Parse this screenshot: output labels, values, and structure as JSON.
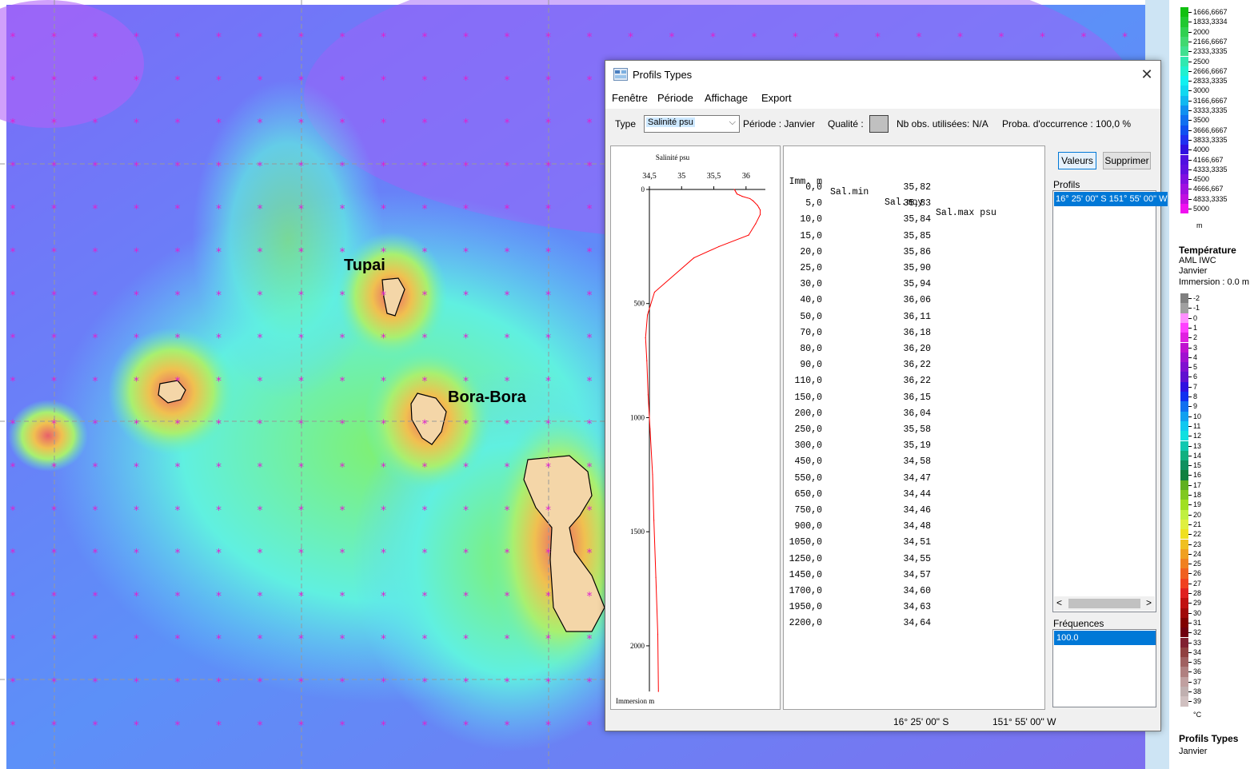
{
  "map": {
    "places": [
      "Tupai",
      "Bora-Bora"
    ]
  },
  "legend": {
    "depth_labels": [
      "1666,6667",
      "1833,3334",
      "2000",
      "2166,6667",
      "2333,3335",
      "2500",
      "2666,6667",
      "2833,3335",
      "3000",
      "3166,6667",
      "3333,3335",
      "3500",
      "3666,6667",
      "3833,3335",
      "4000",
      "4166,667",
      "4333,3335",
      "4500",
      "4666,667",
      "4833,3335",
      "5000"
    ],
    "depth_unit": "m",
    "temp_title": "Température",
    "temp_source": "AML IWC",
    "temp_month": "Janvier",
    "temp_immersion": "Immersion : 0.0 m",
    "temp_labels": [
      "-2",
      "-1",
      "0",
      "1",
      "2",
      "3",
      "4",
      "5",
      "6",
      "7",
      "8",
      "9",
      "10",
      "11",
      "12",
      "13",
      "14",
      "15",
      "16",
      "17",
      "18",
      "19",
      "20",
      "21",
      "22",
      "23",
      "24",
      "25",
      "26",
      "27",
      "28",
      "29",
      "30",
      "31",
      "32",
      "33",
      "34",
      "35",
      "36",
      "37",
      "38",
      "39"
    ],
    "temp_unit": "°C",
    "footer_title": "Profils Types",
    "footer_month": "Janvier"
  },
  "dialog": {
    "title": "Profils Types",
    "close": "✕",
    "menu": [
      "Fenêtre",
      "Période",
      "Affichage",
      "Export"
    ],
    "toolbar": {
      "type_label": "Type",
      "type_value": "Salinité psu",
      "periode": "Période :  Janvier",
      "qualite": "Qualité :",
      "nb_obs": "Nb obs. utilisées: N/A",
      "proba": "Proba. d'occurrence : 100,0 %"
    },
    "table": {
      "header": [
        "Imm. m",
        "Sal.min",
        "Sal.moy",
        "Sal.max psu"
      ],
      "rows": [
        [
          "0,0",
          "35,82"
        ],
        [
          "5,0",
          "35,83"
        ],
        [
          "10,0",
          "35,84"
        ],
        [
          "15,0",
          "35,85"
        ],
        [
          "20,0",
          "35,86"
        ],
        [
          "25,0",
          "35,90"
        ],
        [
          "30,0",
          "35,94"
        ],
        [
          "40,0",
          "36,06"
        ],
        [
          "50,0",
          "36,11"
        ],
        [
          "70,0",
          "36,18"
        ],
        [
          "80,0",
          "36,20"
        ],
        [
          "90,0",
          "36,22"
        ],
        [
          "110,0",
          "36,22"
        ],
        [
          "150,0",
          "36,15"
        ],
        [
          "200,0",
          "36,04"
        ],
        [
          "250,0",
          "35,58"
        ],
        [
          "300,0",
          "35,19"
        ],
        [
          "450,0",
          "34,58"
        ],
        [
          "550,0",
          "34,47"
        ],
        [
          "650,0",
          "34,44"
        ],
        [
          "750,0",
          "34,46"
        ],
        [
          "900,0",
          "34,48"
        ],
        [
          "1050,0",
          "34,51"
        ],
        [
          "1250,0",
          "34,55"
        ],
        [
          "1450,0",
          "34,57"
        ],
        [
          "1700,0",
          "34,60"
        ],
        [
          "1950,0",
          "34,63"
        ],
        [
          "2200,0",
          "34,64"
        ]
      ]
    },
    "buttons": {
      "valeurs": "Valeurs",
      "supprimer": "Supprimer"
    },
    "profils_label": "Profils",
    "profils_item": "16° 25' 00\" S 151° 55' 00\" W",
    "frequences_label": "Fréquences",
    "frequences_item": "100.0",
    "status_lat": "16° 25' 00\" S",
    "status_lon": "151° 55' 00\" W"
  },
  "chart_data": {
    "type": "line",
    "title": "Salinité psu",
    "ylabel": "Immersion m",
    "x_ticks": [
      "34,5",
      "35",
      "35,5",
      "36"
    ],
    "y_ticks": [
      "0",
      "500",
      "1000",
      "1500",
      "2000"
    ],
    "xlim": [
      34.5,
      36.3
    ],
    "ylim": [
      0,
      2200
    ],
    "series": [
      {
        "color": "#ff0000",
        "x": [
          35.82,
          35.83,
          35.84,
          35.85,
          35.86,
          35.9,
          35.94,
          36.06,
          36.11,
          36.18,
          36.2,
          36.22,
          36.22,
          36.15,
          36.04,
          35.58,
          35.19,
          34.58,
          34.47,
          34.44,
          34.46,
          34.48,
          34.51,
          34.55,
          34.57,
          34.6,
          34.63,
          34.64
        ],
        "y": [
          0,
          5,
          10,
          15,
          20,
          25,
          30,
          40,
          50,
          70,
          80,
          90,
          110,
          150,
          200,
          250,
          300,
          450,
          550,
          650,
          750,
          900,
          1050,
          1250,
          1450,
          1700,
          1950,
          2200
        ]
      }
    ]
  }
}
